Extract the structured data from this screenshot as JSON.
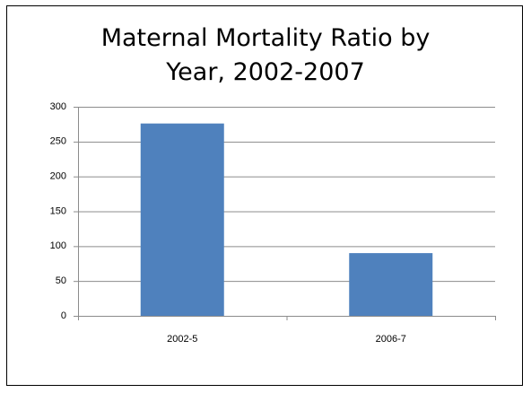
{
  "chart_data": {
    "type": "bar",
    "title": "Maternal Mortality Ratio by Year, 2002-2007",
    "categories": [
      "2002-5",
      "2006-7"
    ],
    "values": [
      276,
      90
    ],
    "color": "#4f81bd",
    "ylim": [
      0,
      300
    ],
    "yticks": [
      0,
      50,
      100,
      150,
      200,
      250,
      300
    ],
    "grid": true
  }
}
